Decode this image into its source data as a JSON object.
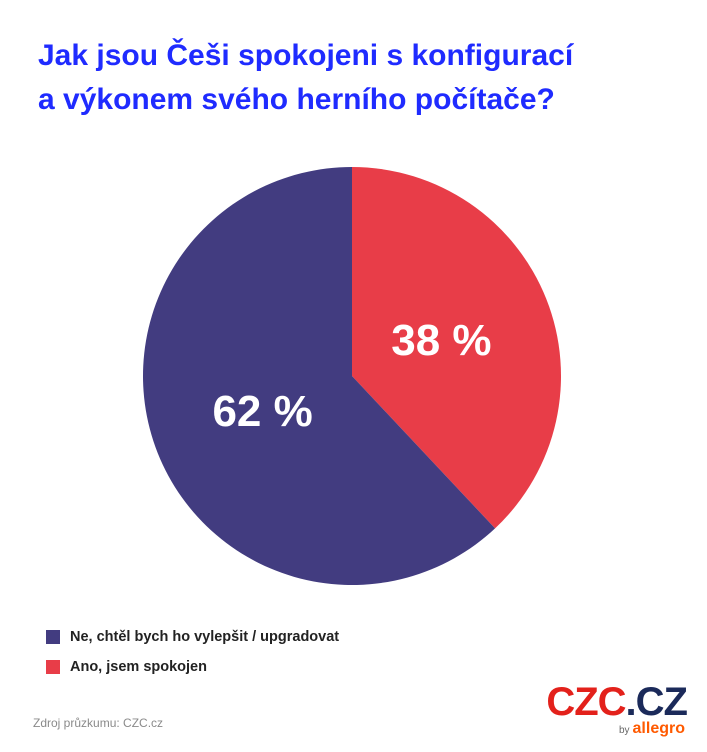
{
  "title_lines": [
    "Jak jsou Češi spokojeni s konfigurací",
    "a výkonem svého herního počítače?"
  ],
  "chart_data": {
    "type": "pie",
    "slices": [
      {
        "label": "Ano, jsem spokojen",
        "value": 38,
        "display": "38 %",
        "color": "#e83d48"
      },
      {
        "label": "Ne, chtěl bych ho vylepšit / upgradovat",
        "value": 62,
        "display": "62 %",
        "color": "#423c80"
      }
    ],
    "legend": {
      "placement": "bottom-left",
      "items": [
        {
          "label": "Ne, chtěl bych ho vylepšit / upgradovat",
          "color": "#423c80"
        },
        {
          "label": "Ano, jsem spokojen",
          "color": "#e83d48"
        }
      ]
    }
  },
  "source_text": "Zdroj průzkumu: CZC.cz",
  "logo": {
    "czc": "CZC",
    "dot": ".",
    "cz": "CZ",
    "by": "by",
    "allegro": "allegro"
  }
}
